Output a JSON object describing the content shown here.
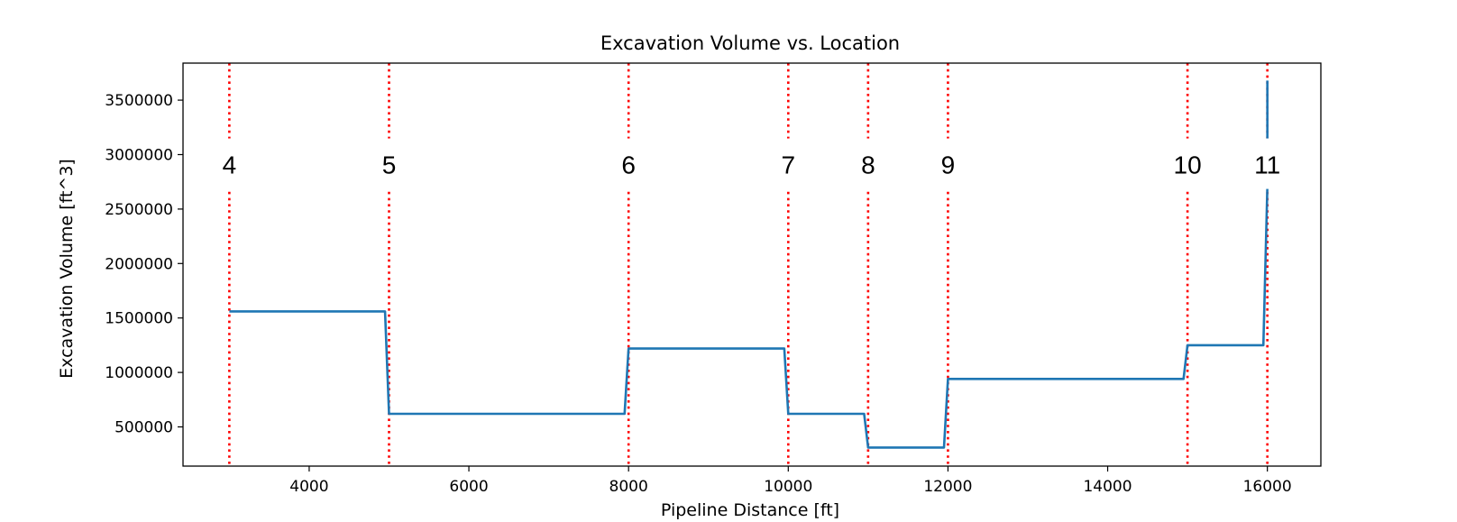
{
  "chart_data": {
    "type": "line",
    "title": "Excavation Volume vs. Location",
    "xlabel": "Pipeline Distance [ft]",
    "ylabel": "Excavation Volume [ft^3]",
    "xlim": [
      2420,
      16670
    ],
    "ylim": [
      140000,
      3840000
    ],
    "xticks": [
      4000,
      6000,
      8000,
      10000,
      12000,
      14000,
      16000
    ],
    "yticks": [
      500000,
      1000000,
      1500000,
      2000000,
      2500000,
      3000000,
      3500000
    ],
    "grid": false,
    "series": [
      {
        "color": "#1f77b4",
        "x": [
          3000,
          4950,
          5000,
          7950,
          8000,
          9950,
          10000,
          10950,
          11000,
          11950,
          12000,
          14950,
          15000,
          15950,
          16000,
          16000
        ],
        "y": [
          1560000,
          1560000,
          620000,
          620000,
          1220000,
          1220000,
          620000,
          620000,
          310000,
          310000,
          940000,
          940000,
          1250000,
          1250000,
          2700000,
          3680000
        ]
      }
    ],
    "markers": [
      {
        "x": 3000,
        "label": "4"
      },
      {
        "x": 5000,
        "label": "5"
      },
      {
        "x": 8000,
        "label": "6"
      },
      {
        "x": 10000,
        "label": "7"
      },
      {
        "x": 11000,
        "label": "8"
      },
      {
        "x": 12000,
        "label": "9"
      },
      {
        "x": 15000,
        "label": "10"
      },
      {
        "x": 16000,
        "label": "11"
      }
    ],
    "marker_color": "#ff0000",
    "marker_label_y": 2900000
  }
}
